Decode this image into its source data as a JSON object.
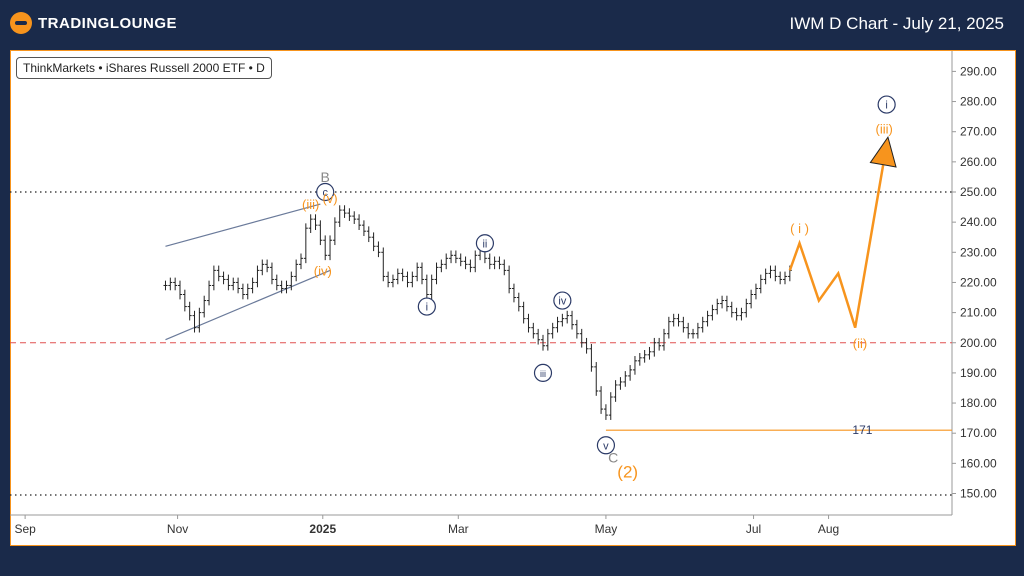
{
  "header": {
    "logo_text": "TRADINGLOUNGE",
    "title": "IWM D Chart - July 21, 2025"
  },
  "source": "ThinkMarkets • iShares Russell 2000 ETF • D",
  "colors": {
    "orange": "#f7941d",
    "navy": "#2b3a67",
    "gray": "#888888",
    "red_dash": "#e05050",
    "channel": "#6a7a9a"
  },
  "chart_data": {
    "type": "line",
    "ylim": [
      142,
      296
    ],
    "y_ticks": [
      150,
      160,
      170,
      180,
      190,
      200,
      210,
      220,
      230,
      240,
      250,
      260,
      270,
      280,
      290
    ],
    "x_ticks": [
      "Sep",
      "Nov",
      "2025",
      "Mar",
      "May",
      "Jul",
      "Aug"
    ],
    "price_series": [
      [
        -6,
        219
      ],
      [
        -4,
        220
      ],
      [
        -2,
        219
      ],
      [
        0,
        216
      ],
      [
        2,
        212
      ],
      [
        4,
        209
      ],
      [
        6,
        205
      ],
      [
        8,
        210
      ],
      [
        10,
        214
      ],
      [
        12,
        219
      ],
      [
        14,
        224
      ],
      [
        16,
        222
      ],
      [
        18,
        221
      ],
      [
        20,
        219
      ],
      [
        22,
        220
      ],
      [
        24,
        218
      ],
      [
        26,
        216
      ],
      [
        28,
        218
      ],
      [
        30,
        220
      ],
      [
        32,
        224
      ],
      [
        34,
        226
      ],
      [
        36,
        225
      ],
      [
        38,
        221
      ],
      [
        40,
        219
      ],
      [
        42,
        218
      ],
      [
        44,
        219
      ],
      [
        46,
        222
      ],
      [
        48,
        226
      ],
      [
        50,
        228
      ],
      [
        52,
        238
      ],
      [
        54,
        241
      ],
      [
        56,
        239
      ],
      [
        58,
        234
      ],
      [
        60,
        229
      ],
      [
        62,
        234
      ],
      [
        64,
        240
      ],
      [
        66,
        244
      ],
      [
        68,
        243
      ],
      [
        70,
        242
      ],
      [
        72,
        241
      ],
      [
        74,
        239
      ],
      [
        76,
        237
      ],
      [
        78,
        235
      ],
      [
        80,
        232
      ],
      [
        82,
        230
      ],
      [
        84,
        222
      ],
      [
        86,
        220
      ],
      [
        88,
        221
      ],
      [
        90,
        223
      ],
      [
        92,
        222
      ],
      [
        94,
        220
      ],
      [
        96,
        222
      ],
      [
        98,
        225
      ],
      [
        100,
        221
      ],
      [
        102,
        216
      ],
      [
        104,
        221
      ],
      [
        106,
        225
      ],
      [
        108,
        226
      ],
      [
        110,
        228
      ],
      [
        112,
        229
      ],
      [
        114,
        228
      ],
      [
        116,
        227
      ],
      [
        118,
        226
      ],
      [
        120,
        225
      ],
      [
        122,
        229
      ],
      [
        124,
        231
      ],
      [
        126,
        228
      ],
      [
        128,
        226
      ],
      [
        130,
        227
      ],
      [
        132,
        226
      ],
      [
        134,
        224
      ],
      [
        136,
        218
      ],
      [
        138,
        215
      ],
      [
        140,
        212
      ],
      [
        142,
        208
      ],
      [
        144,
        205
      ],
      [
        146,
        203
      ],
      [
        148,
        201
      ],
      [
        150,
        199
      ],
      [
        152,
        203
      ],
      [
        154,
        205
      ],
      [
        156,
        207
      ],
      [
        158,
        208
      ],
      [
        160,
        209
      ],
      [
        162,
        206
      ],
      [
        164,
        203
      ],
      [
        166,
        200
      ],
      [
        168,
        198
      ],
      [
        170,
        192
      ],
      [
        172,
        184
      ],
      [
        174,
        178
      ],
      [
        176,
        176
      ],
      [
        178,
        182
      ],
      [
        180,
        186
      ],
      [
        182,
        187
      ],
      [
        184,
        189
      ],
      [
        186,
        191
      ],
      [
        188,
        194
      ],
      [
        190,
        195
      ],
      [
        192,
        196
      ],
      [
        194,
        197
      ],
      [
        196,
        200
      ],
      [
        198,
        199
      ],
      [
        200,
        203
      ],
      [
        202,
        207
      ],
      [
        204,
        208
      ],
      [
        206,
        207
      ],
      [
        208,
        205
      ],
      [
        210,
        203
      ],
      [
        212,
        203
      ],
      [
        214,
        205
      ],
      [
        216,
        207
      ],
      [
        218,
        209
      ],
      [
        220,
        211
      ],
      [
        222,
        213
      ],
      [
        224,
        214
      ],
      [
        226,
        212
      ],
      [
        228,
        210
      ],
      [
        230,
        209
      ],
      [
        232,
        210
      ],
      [
        234,
        213
      ],
      [
        236,
        216
      ],
      [
        238,
        218
      ],
      [
        240,
        221
      ],
      [
        242,
        223
      ],
      [
        244,
        224
      ],
      [
        246,
        222
      ],
      [
        248,
        221
      ],
      [
        250,
        222
      ],
      [
        252,
        224
      ]
    ],
    "projection": [
      [
        252,
        224
      ],
      [
        256,
        233
      ],
      [
        264,
        214
      ],
      [
        272,
        223
      ],
      [
        279,
        205
      ],
      [
        291,
        261
      ]
    ],
    "channel_upper": [
      [
        -6,
        232
      ],
      [
        58,
        246
      ]
    ],
    "channel_lower": [
      [
        -6,
        201
      ],
      [
        62,
        224
      ]
    ],
    "horizontal_lines": [
      {
        "y": 250,
        "style": "dotted"
      },
      {
        "y": 149.5,
        "style": "dotted"
      },
      {
        "y": 200,
        "style": "dashed-red"
      }
    ],
    "support_line": {
      "y": 171,
      "x_start": 176,
      "label": "171"
    },
    "annotations": [
      {
        "text": "B",
        "x": 60,
        "y": 255,
        "color": "gray",
        "circle": false
      },
      {
        "text": "c",
        "x": 60,
        "y": 250,
        "color": "navy",
        "circle": true
      },
      {
        "text": "(iii)",
        "x": 54,
        "y": 246,
        "color": "orange",
        "circle": false
      },
      {
        "text": "(v)",
        "x": 62,
        "y": 248,
        "color": "orange",
        "circle": false
      },
      {
        "text": "(iv)",
        "x": 59,
        "y": 224,
        "color": "orange",
        "circle": false
      },
      {
        "text": "i",
        "x": 102,
        "y": 212,
        "color": "navy",
        "circle": true
      },
      {
        "text": "ii",
        "x": 126,
        "y": 233,
        "color": "navy",
        "circle": true
      },
      {
        "text": "iii",
        "x": 150,
        "y": 190,
        "color": "navy",
        "circle": true
      },
      {
        "text": "iv",
        "x": 158,
        "y": 214,
        "color": "navy",
        "circle": true
      },
      {
        "text": "v",
        "x": 176,
        "y": 166,
        "color": "navy",
        "circle": true
      },
      {
        "text": "C",
        "x": 179,
        "y": 162,
        "color": "gray",
        "circle": false
      },
      {
        "text": "(2)",
        "x": 185,
        "y": 157,
        "color": "orange",
        "circle": false
      },
      {
        "text": "( i )",
        "x": 256,
        "y": 238,
        "color": "orange",
        "circle": false
      },
      {
        "text": "(ii)",
        "x": 281,
        "y": 200,
        "color": "orange",
        "circle": false
      },
      {
        "text": "(iii)",
        "x": 291,
        "y": 271,
        "color": "orange",
        "circle": false
      },
      {
        "text": "i",
        "x": 292,
        "y": 279,
        "color": "navy",
        "circle": true
      }
    ]
  }
}
